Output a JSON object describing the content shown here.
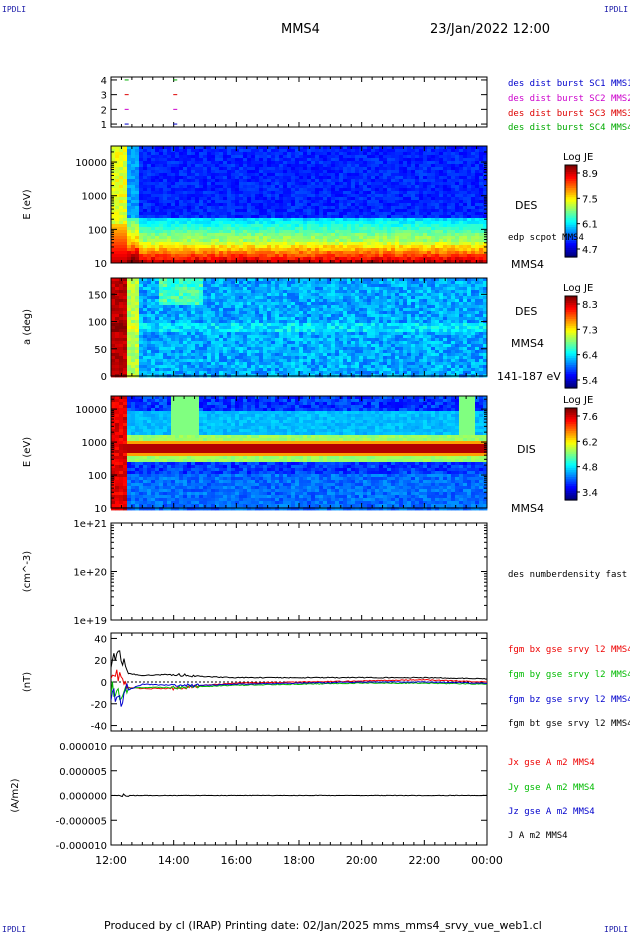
{
  "corner_labels": {
    "tl": "IPDLI",
    "tr": "IPDLI",
    "bl": "IPDLI",
    "br": "IPDLI"
  },
  "header": {
    "spacecraft": "MMS4",
    "date_time": "23/Jan/2022 12:00"
  },
  "footer": {
    "text": "Produced by cl (IRAP)   Printing date: 02/Jan/2025   mms_mms4_srvy_vue_web1.cl"
  },
  "x_axis": {
    "ticks": [
      "12:00",
      "14:00",
      "16:00",
      "18:00",
      "20:00",
      "22:00",
      "00:00"
    ],
    "tick_hours": [
      12,
      14,
      16,
      18,
      20,
      22,
      24
    ],
    "range_hours": [
      12,
      24
    ]
  },
  "colors": {
    "mms1": "#0000cc",
    "mms2": "#cc00cc",
    "mms3": "#dd0000",
    "mms4": "#00aa00",
    "bx": "#ee0000",
    "by": "#00bb00",
    "bz": "#0000cc",
    "bt": "#000000"
  },
  "chart_data": [
    {
      "type": "scatter",
      "ylim": [
        1,
        4
      ],
      "yticks": [
        "1",
        "2",
        "3",
        "4"
      ],
      "legend_placement": "right",
      "series": [
        {
          "name": "des dist burst SC1 MMS1",
          "y": 1,
          "x_hours": [
            12.5,
            14.05
          ],
          "color_key": "mms1"
        },
        {
          "name": "des dist burst SC2 MMS2",
          "y": 2,
          "x_hours": [
            12.5,
            14.05
          ],
          "color_key": "mms2"
        },
        {
          "name": "des dist burst SC3 MMS3",
          "y": 3,
          "x_hours": [
            12.5,
            14.05
          ],
          "color_key": "mms3"
        },
        {
          "name": "des dist burst SC4 MMS4",
          "y": 4,
          "x_hours": [
            12.5,
            14.05
          ],
          "color_key": "mms4"
        }
      ]
    },
    {
      "type": "heatmap",
      "ylabel": "E (eV)",
      "y_scale": "log",
      "ylim": [
        10,
        30000
      ],
      "yticks": [
        "10",
        "100",
        "1000",
        "10000"
      ],
      "label_species": "DES",
      "label_spacecraft": "MMS4",
      "overlay_label": "edp scpot MMS4",
      "colorbar": {
        "title": "Log JE",
        "ticks": [
          "8.9",
          "7.5",
          "6.1",
          "4.7"
        ],
        "range": [
          4.7,
          8.9
        ]
      }
    },
    {
      "type": "heatmap",
      "ylabel": "a (deg)",
      "ylim": [
        0,
        180
      ],
      "yticks": [
        "0",
        "50",
        "100",
        "150"
      ],
      "label_species": "DES",
      "label_spacecraft": "MMS4",
      "energy_range_label": "141-187 eV",
      "colorbar": {
        "title": "Log JE",
        "ticks": [
          "8.3",
          "7.3",
          "6.4",
          "5.4"
        ],
        "range": [
          5.4,
          8.3
        ]
      }
    },
    {
      "type": "heatmap",
      "ylabel": "E (eV)",
      "y_scale": "log",
      "ylim": [
        10,
        25000
      ],
      "yticks": [
        "10",
        "100",
        "1000",
        "10000"
      ],
      "label_species": "DIS",
      "label_spacecraft": "MMS4",
      "band_energy_ev": 700,
      "colorbar": {
        "title": "Log JE",
        "ticks": [
          "7.6",
          "6.2",
          "4.8",
          "3.4"
        ],
        "range": [
          3.4,
          7.6
        ]
      }
    },
    {
      "type": "line",
      "ylabel": "(cm^-3)",
      "y_scale": "log",
      "ylim": [
        1e+19,
        1e+21
      ],
      "yticks": [
        "1e+19",
        "1e+20",
        "1e+21"
      ],
      "series": [
        {
          "name": "des numberdensity fast M",
          "values": []
        }
      ]
    },
    {
      "type": "line",
      "ylabel": "(nT)",
      "ylim": [
        -45,
        45
      ],
      "yticks": [
        "-40",
        "-20",
        "0",
        "20",
        "40"
      ],
      "series": [
        {
          "name": "fgm bx gse srvy l2 MMS4",
          "color_key": "bx",
          "x_hours": [
            12.0,
            12.3,
            12.5,
            13.0,
            14.0,
            15.0,
            16.0,
            18.0,
            20.0,
            22.0,
            24.0
          ],
          "values": [
            10,
            5,
            -5,
            -6,
            -6,
            -3,
            -1,
            0,
            1,
            2,
            0
          ]
        },
        {
          "name": "fgm by gse srvy l2 MMS4",
          "color_key": "by",
          "x_hours": [
            12.0,
            12.3,
            12.5,
            13.0,
            14.0,
            15.0,
            16.0,
            18.0,
            20.0,
            22.0,
            24.0
          ],
          "values": [
            -5,
            -15,
            -6,
            -5,
            -5,
            -4,
            -3,
            -2,
            -1,
            -1,
            -2
          ]
        },
        {
          "name": "fgm bz gse srvy l2 MMS4",
          "color_key": "bz",
          "x_hours": [
            12.0,
            12.3,
            12.5,
            13.0,
            14.0,
            15.0,
            16.0,
            18.0,
            20.0,
            22.0,
            24.0
          ],
          "values": [
            -10,
            -20,
            -8,
            -2,
            -3,
            -3,
            -2,
            -1,
            0,
            0,
            -1
          ]
        },
        {
          "name": "fgm bt gse srvy l2 MMS4",
          "color_key": "bt",
          "x_hours": [
            12.0,
            12.3,
            12.5,
            13.0,
            14.0,
            15.0,
            16.0,
            18.0,
            20.0,
            22.0,
            24.0
          ],
          "values": [
            20,
            28,
            8,
            6,
            7,
            5,
            4,
            4,
            4,
            4,
            3
          ]
        }
      ]
    },
    {
      "type": "line",
      "ylabel": "(A/m2)",
      "ylim": [
        -1e-05,
        1e-05
      ],
      "yticks": [
        "-0.000010",
        "-0.000005",
        "0.000000",
        "0.000005",
        "0.000010"
      ],
      "series": [
        {
          "name": "Jx gse A m2 MMS4",
          "color_key": "bx",
          "values": [
            0
          ]
        },
        {
          "name": "Jy gse A m2 MMS4",
          "color_key": "by",
          "values": [
            0
          ]
        },
        {
          "name": "Jz gse A m2 MMS4",
          "color_key": "bz",
          "values": [
            0
          ]
        },
        {
          "name": "J A m2 MMS4",
          "color_key": "bt",
          "values": [
            0
          ]
        }
      ]
    }
  ]
}
